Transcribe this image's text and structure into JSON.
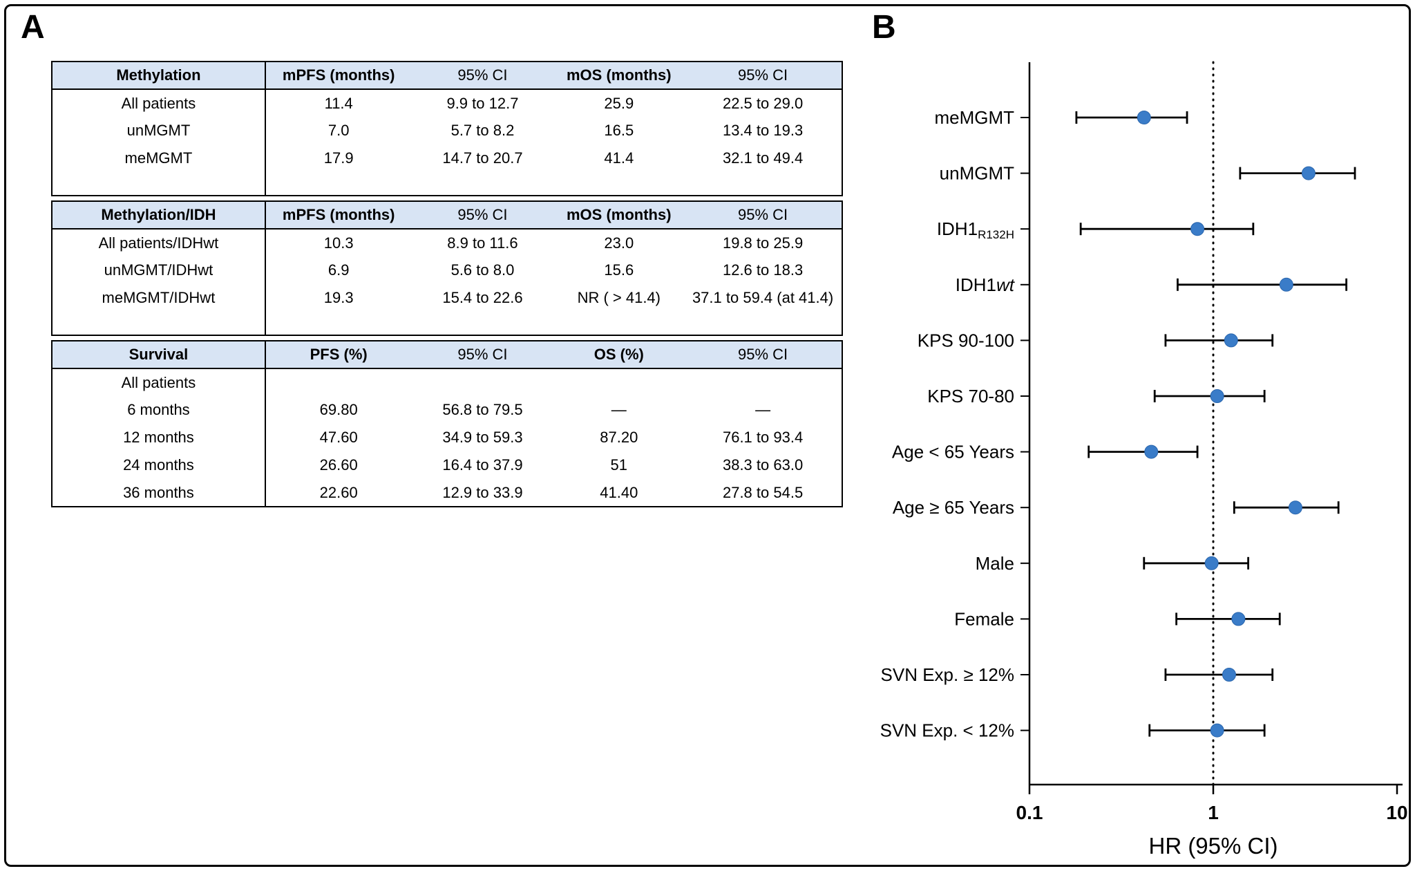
{
  "figure": {
    "panel_a_label": "A",
    "panel_b_label": "B",
    "table_header_bg": "#d8e4f4"
  },
  "tables": [
    {
      "name": "methylation",
      "columns": [
        "Methylation",
        "mPFS (months)",
        "95% CI",
        "mOS (months)",
        "95% CI"
      ],
      "rows": [
        [
          "All patients",
          "11.4",
          "9.9 to 12.7",
          "25.9",
          "22.5 to 29.0"
        ],
        [
          "unMGMT",
          "7.0",
          "5.7 to 8.2",
          "16.5",
          "13.4 to 19.3"
        ],
        [
          "meMGMT",
          "17.9",
          "14.7 to 20.7",
          "41.4",
          "32.1 to 49.4"
        ]
      ],
      "pad_bottom": true
    },
    {
      "name": "methylation-idh",
      "columns": [
        "Methylation/IDH",
        "mPFS (months)",
        "95% CI",
        "mOS (months)",
        "95% CI"
      ],
      "rows": [
        [
          "All patients/IDHwt",
          "10.3",
          "8.9 to 11.6",
          "23.0",
          "19.8 to 25.9"
        ],
        [
          "unMGMT/IDHwt",
          "6.9",
          "5.6 to 8.0",
          "15.6",
          "12.6 to 18.3"
        ],
        [
          "meMGMT/IDHwt",
          "19.3",
          "15.4 to 22.6",
          "NR ( > 41.4)",
          "37.1 to 59.4 (at 41.4)"
        ]
      ],
      "pad_bottom": true
    },
    {
      "name": "survival",
      "columns": [
        "Survival",
        "PFS (%)",
        "95% CI",
        "OS (%)",
        "95% CI"
      ],
      "rows": [
        [
          "All patients",
          "",
          "",
          "",
          ""
        ],
        [
          "6 months",
          "69.80",
          "56.8 to 79.5",
          "—",
          "—"
        ],
        [
          "12 months",
          "47.60",
          "34.9 to 59.3",
          "87.20",
          "76.1 to 93.4"
        ],
        [
          "24 months",
          "26.60",
          "16.4 to 37.9",
          "51",
          "38.3 to 63.0"
        ],
        [
          "36 months",
          "22.60",
          "12.9 to 33.9",
          "41.40",
          "27.8 to 54.5"
        ]
      ],
      "pad_bottom": false
    }
  ],
  "chart_data": {
    "type": "scatter",
    "subtype": "forest-plot",
    "xlabel": "HR (95% CI)",
    "x_scale": "log",
    "x_range": [
      0.1,
      10
    ],
    "x_ticks": [
      "0.1",
      "1",
      "10"
    ],
    "reference_line": 1,
    "marker_color": "#3a7cc8",
    "rows": [
      {
        "label": "meMGMT",
        "hr": 0.42,
        "ci_low": 0.18,
        "ci_high": 0.72
      },
      {
        "label": "unMGMT",
        "hr": 3.3,
        "ci_low": 1.4,
        "ci_high": 5.9
      },
      {
        "label": "IDH1",
        "label_subscript": "R132H",
        "hr": 0.82,
        "ci_low": 0.19,
        "ci_high": 1.65
      },
      {
        "label": "IDH1",
        "label_italic": "wt",
        "hr": 2.5,
        "ci_low": 0.64,
        "ci_high": 5.3
      },
      {
        "label": "KPS 90-100",
        "hr": 1.25,
        "ci_low": 0.55,
        "ci_high": 2.1
      },
      {
        "label": "KPS 70-80",
        "hr": 1.05,
        "ci_low": 0.48,
        "ci_high": 1.9
      },
      {
        "label": "Age < 65 Years",
        "hr": 0.46,
        "ci_low": 0.21,
        "ci_high": 0.82
      },
      {
        "label": "Age ≥ 65 Years",
        "hr": 2.8,
        "ci_low": 1.3,
        "ci_high": 4.8
      },
      {
        "label": "Male",
        "hr": 0.98,
        "ci_low": 0.42,
        "ci_high": 1.55
      },
      {
        "label": "Female",
        "hr": 1.37,
        "ci_low": 0.63,
        "ci_high": 2.3
      },
      {
        "label": "SVN Exp. ≥ 12%",
        "hr": 1.22,
        "ci_low": 0.55,
        "ci_high": 2.1
      },
      {
        "label": "SVN Exp. < 12%",
        "hr": 1.05,
        "ci_low": 0.45,
        "ci_high": 1.9
      }
    ]
  }
}
